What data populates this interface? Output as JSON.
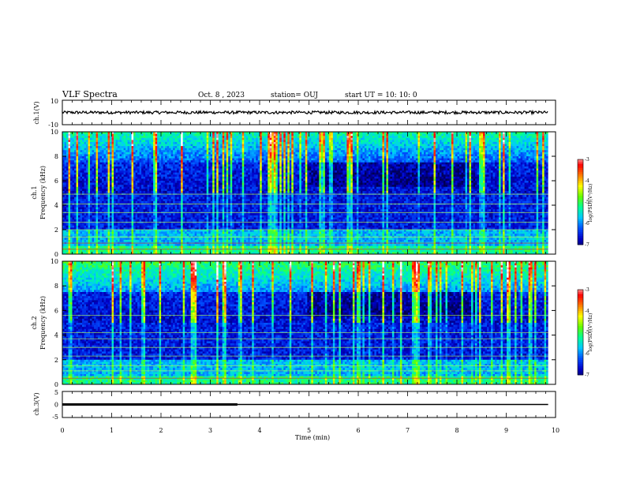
{
  "header": {
    "title": "VLF Spectra",
    "date": "Oct. 8 , 2023",
    "station": "station= OUJ",
    "start": "start  UT =   10: 10: 0"
  },
  "panels": {
    "ch1_wave": {
      "ylabel": "ch.1(V)",
      "ymax": "10",
      "ymin": "-10"
    },
    "ch1_spec": {
      "ylabel_top": "ch.1",
      "ylabel_bottom": "Frequency  (kHz)",
      "colorbar_label": "log(PSD)(V²/Hz)"
    },
    "ch2_spec": {
      "ylabel_top": "ch.2",
      "ylabel_bottom": "Frequency  (kHz)",
      "colorbar_label": "log(PSD)(V²/Hz)"
    },
    "ch3_wave": {
      "ylabel": "ch.3(V)",
      "ymax": "5",
      "ymid": "0",
      "ymin": "-5"
    }
  },
  "xaxis": {
    "label": "Time  (min)"
  },
  "chart_data": [
    {
      "type": "line",
      "name": "ch1-waveform",
      "ylabel": "ch.1(V)",
      "ylim": [
        -10,
        10
      ],
      "xlim": [
        0,
        10
      ],
      "description_values": {
        "x_end": 9.85,
        "mean": 0,
        "amplitude": 1.2
      }
    },
    {
      "type": "heatmap",
      "name": "ch1-spectrogram",
      "xlabel": "Time  (min)",
      "ylabel": "Frequency  (kHz)",
      "xlim": [
        0,
        10
      ],
      "ylim": [
        0,
        10
      ],
      "x_data_end": 9.85,
      "color_range": [
        -7,
        -3
      ],
      "colorbar_ticks": [
        "-3",
        "-4",
        "-5",
        "-6",
        "-7"
      ],
      "bands_khz": [
        0.4,
        0.9,
        1.4,
        2.0,
        2.6,
        3.4,
        4.1,
        4.9
      ]
    },
    {
      "type": "heatmap",
      "name": "ch2-spectrogram",
      "xlabel": "Time  (min)",
      "ylabel": "Frequency  (kHz)",
      "xlim": [
        0,
        10
      ],
      "ylim": [
        0,
        10
      ],
      "x_data_end": 9.85,
      "color_range": [
        -7,
        -3
      ],
      "colorbar_ticks": [
        "-3",
        "-4",
        "-5",
        "-6",
        "-7"
      ],
      "bands_khz": [
        0.5,
        1.1,
        1.5,
        2.3,
        3.0,
        3.7,
        4.2,
        5.6
      ]
    },
    {
      "type": "line",
      "name": "ch3-waveform",
      "ylabel": "ch.3(V)",
      "ylim": [
        -5,
        5
      ],
      "xlim": [
        0,
        10
      ],
      "segments": [
        {
          "x": [
            0,
            3.55
          ],
          "y": 0,
          "weight": "thick"
        },
        {
          "x": [
            3.55,
            9.85
          ],
          "y": 0,
          "weight": "thin"
        }
      ]
    }
  ],
  "xticks": [
    "0",
    "1",
    "2",
    "3",
    "4",
    "5",
    "6",
    "7",
    "8",
    "9",
    "10"
  ],
  "spec_yticks": [
    "0",
    "2",
    "4",
    "6",
    "8",
    "10"
  ],
  "colors": {
    "colormap": [
      "#000050",
      "#0000c8",
      "#0050ff",
      "#00c8ff",
      "#00ff96",
      "#64ff00",
      "#ffff00",
      "#ff8000",
      "#ff0000",
      "#ffffff"
    ]
  }
}
